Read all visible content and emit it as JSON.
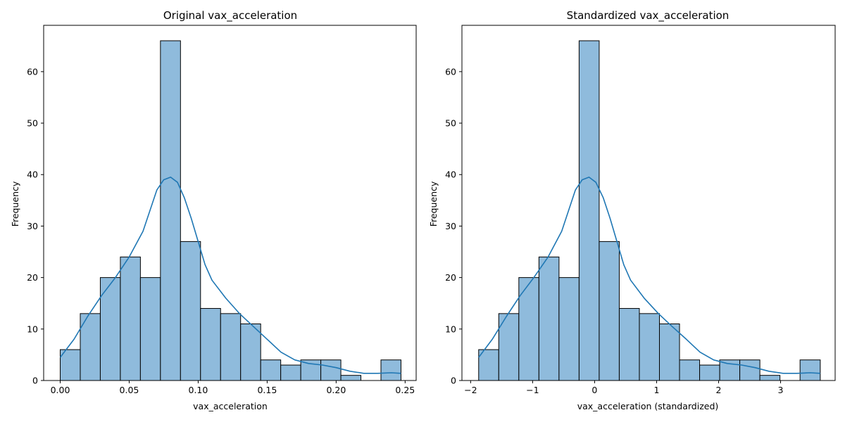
{
  "colors": {
    "bar_fill": "#8fbbdc",
    "bar_edge": "#000000",
    "kde_line": "#1f77b4",
    "axis": "#000000",
    "background": "#ffffff"
  },
  "chart_data": [
    {
      "type": "bar",
      "title": "Original vax_acceleration",
      "xlabel": "vax_acceleration",
      "ylabel": "Frequency",
      "xlim": [
        -0.012,
        0.258
      ],
      "ylim": [
        0,
        69
      ],
      "grid": false,
      "x_ticks": [
        0.0,
        0.05,
        0.1,
        0.15,
        0.2,
        0.25
      ],
      "x_tick_labels": [
        "0.00",
        "0.05",
        "0.10",
        "0.15",
        "0.20",
        "0.25"
      ],
      "y_ticks": [
        0,
        10,
        20,
        30,
        40,
        50,
        60
      ],
      "y_tick_labels": [
        "0",
        "10",
        "20",
        "30",
        "40",
        "50",
        "60"
      ],
      "bin_edges": [
        0.0,
        0.01453,
        0.02906,
        0.04359,
        0.05812,
        0.07265,
        0.08718,
        0.10171,
        0.11624,
        0.13077,
        0.1453,
        0.15983,
        0.17436,
        0.18889,
        0.20342,
        0.21795,
        0.23248,
        0.247
      ],
      "values": [
        6,
        13,
        20,
        24,
        20,
        66,
        27,
        14,
        13,
        11,
        4,
        3,
        4,
        4,
        1,
        0,
        4
      ],
      "kde": {
        "x": [
          0.0,
          0.01,
          0.02,
          0.03,
          0.04,
          0.05,
          0.06,
          0.065,
          0.07,
          0.075,
          0.08,
          0.085,
          0.09,
          0.095,
          0.1,
          0.105,
          0.11,
          0.12,
          0.13,
          0.14,
          0.15,
          0.16,
          0.17,
          0.18,
          0.19,
          0.2,
          0.21,
          0.22,
          0.23,
          0.24,
          0.247
        ],
        "y": [
          4.5,
          8,
          12.5,
          16.5,
          20,
          24,
          29,
          33,
          37,
          39,
          39.5,
          38.5,
          35.5,
          31.5,
          27,
          22.5,
          19.5,
          16,
          13,
          10.5,
          8,
          5.5,
          4,
          3.3,
          3,
          2.5,
          1.8,
          1.4,
          1.4,
          1.5,
          1.4
        ]
      }
    },
    {
      "type": "bar",
      "title": "Standardized vax_acceleration",
      "xlabel": "vax_acceleration (standardized)",
      "ylabel": "Frequency",
      "xlim": [
        -2.14,
        3.88
      ],
      "ylim": [
        0,
        69
      ],
      "grid": false,
      "x_ticks": [
        -2,
        -1,
        0,
        1,
        2,
        3
      ],
      "x_tick_labels": [
        "−2",
        "−1",
        "0",
        "1",
        "2",
        "3"
      ],
      "y_ticks": [
        0,
        10,
        20,
        30,
        40,
        50,
        60
      ],
      "y_tick_labels": [
        "0",
        "10",
        "20",
        "30",
        "40",
        "50",
        "60"
      ],
      "bin_edges": [
        -1.87,
        -1.546,
        -1.222,
        -0.898,
        -0.574,
        -0.25,
        0.074,
        0.398,
        0.722,
        1.046,
        1.37,
        1.694,
        2.018,
        2.342,
        2.666,
        2.99,
        3.314,
        3.64
      ],
      "values": [
        6,
        13,
        20,
        24,
        20,
        66,
        27,
        14,
        13,
        11,
        4,
        3,
        4,
        4,
        1,
        0,
        4
      ],
      "kde": {
        "x": [
          -1.87,
          -1.65,
          -1.42,
          -1.2,
          -0.98,
          -0.75,
          -0.53,
          -0.42,
          -0.31,
          -0.2,
          -0.09,
          0.02,
          0.14,
          0.25,
          0.36,
          0.47,
          0.58,
          0.8,
          1.03,
          1.25,
          1.48,
          1.7,
          1.92,
          2.14,
          2.37,
          2.59,
          2.81,
          3.04,
          3.26,
          3.48,
          3.64
        ],
        "y": [
          4.5,
          8,
          12.5,
          16.5,
          20,
          24,
          29,
          33,
          37,
          39,
          39.5,
          38.5,
          35.5,
          31.5,
          27,
          22.5,
          19.5,
          16,
          13,
          10.5,
          8,
          5.5,
          4,
          3.3,
          3,
          2.5,
          1.8,
          1.4,
          1.4,
          1.5,
          1.4
        ]
      }
    }
  ]
}
